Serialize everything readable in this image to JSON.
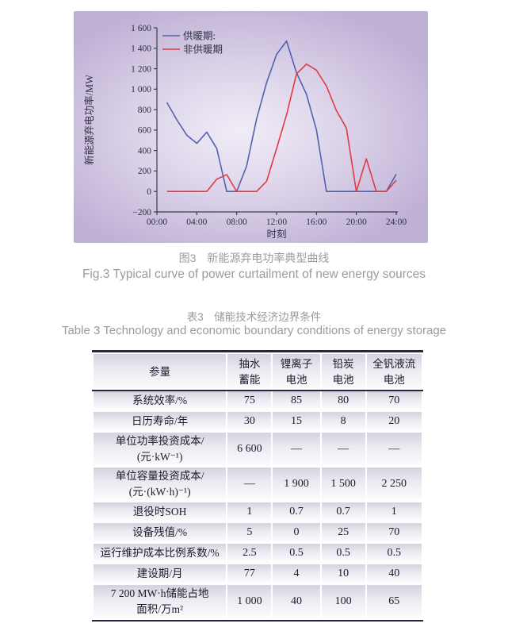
{
  "figure": {
    "caption_zh": "图3　新能源弃电功率典型曲线",
    "caption_en": "Fig.3  Typical curve of power curtailment of new energy sources"
  },
  "chart_data": {
    "type": "line",
    "title": "",
    "xlabel": "时刻",
    "ylabel": "新能源弃电功率/MW",
    "ylim": [
      -200,
      1600
    ],
    "y_tick_step": 200,
    "x_tick_hours": [
      0,
      4,
      8,
      12,
      16,
      20,
      24
    ],
    "x_tick_labels": [
      "00:00",
      "04:00",
      "08:00",
      "12:00",
      "16:00",
      "20:00",
      "24:00"
    ],
    "hours": [
      1,
      2,
      3,
      4,
      5,
      6,
      7,
      8,
      9,
      10,
      11,
      12,
      13,
      14,
      15,
      16,
      17,
      18,
      19,
      20,
      21,
      22,
      23,
      24
    ],
    "series": [
      {
        "id": "heating-period",
        "name": "供暖期:",
        "color": "#5063ae",
        "values": [
          870,
          700,
          550,
          470,
          580,
          420,
          0,
          0,
          250,
          710,
          1065,
          1340,
          1470,
          1160,
          950,
          600,
          0,
          0,
          0,
          0,
          0,
          0,
          0,
          170
        ]
      },
      {
        "id": "non-heating-period",
        "name": "非供暖期",
        "color": "#e13b43",
        "values": [
          0,
          0,
          0,
          0,
          0,
          120,
          165,
          0,
          0,
          0,
          100,
          420,
          750,
          1150,
          1245,
          1185,
          1030,
          790,
          620,
          0,
          320,
          0,
          0,
          110
        ]
      }
    ],
    "legend_position": "top-left",
    "grid": false,
    "axis_color": "#3a3a50",
    "background": {
      "center": "#f1edf7",
      "mid": "#ddd4ea",
      "edge": "#bfb0d5"
    }
  },
  "table": {
    "title_zh": "表3　储能技术经济边界条件",
    "title_en": "Table 3  Technology and economic boundary conditions of energy storage",
    "header": {
      "param": "参量",
      "cols": [
        "抽水\n蓄能",
        "锂离子\n电池",
        "铅炭\n电池",
        "全钒液流\n电池"
      ]
    },
    "rows": [
      {
        "label": "系统效率/%",
        "values": [
          "75",
          "85",
          "80",
          "70"
        ]
      },
      {
        "label": "日历寿命/年",
        "values": [
          "30",
          "15",
          "8",
          "20"
        ]
      },
      {
        "label": "单位功率投资成本/\n(元·kW⁻¹)",
        "values": [
          "6 600",
          "—",
          "—",
          "—"
        ]
      },
      {
        "label": "单位容量投资成本/\n(元·(kW·h)⁻¹)",
        "values": [
          "—",
          "1 900",
          "1 500",
          "2 250"
        ]
      },
      {
        "label": "退役时SOH",
        "values": [
          "1",
          "0.7",
          "0.7",
          "1"
        ]
      },
      {
        "label": "设备残值/%",
        "values": [
          "5",
          "0",
          "25",
          "70"
        ]
      },
      {
        "label": "运行维护成本比例系数/%",
        "values": [
          "2.5",
          "0.5",
          "0.5",
          "0.5"
        ]
      },
      {
        "label": "建设期/月",
        "values": [
          "77",
          "4",
          "10",
          "40"
        ]
      },
      {
        "label": "7 200 MW·h储能占地\n面积/万m²",
        "values": [
          "1 000",
          "40",
          "100",
          "65"
        ]
      }
    ]
  }
}
